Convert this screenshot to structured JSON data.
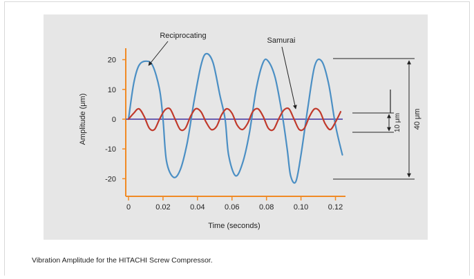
{
  "caption": "Vibration Amplitude for the HITACHI Screw Compressor.",
  "colors": {
    "panel_bg": "#e6e6e6",
    "axis": "#f08a24",
    "reciprocating": "#4b8fc4",
    "samurai": "#c0392b",
    "zero_line": "#6a5fb0",
    "annotation": "#222222"
  },
  "annotations": {
    "reciprocating_label": "Reciprocating",
    "samurai_label": "Samurai",
    "dim_small": "10 μm",
    "dim_large": "40 μm"
  },
  "chart_data": {
    "type": "line",
    "xlabel": "Time (seconds)",
    "ylabel": "Amplitude (μm)",
    "xlim": [
      0,
      0.125
    ],
    "ylim": [
      -25,
      25
    ],
    "x_ticks": [
      "0",
      "0.02",
      "0.04",
      "0.06",
      "0.08",
      "0.10",
      "0.12"
    ],
    "x_tick_values": [
      0,
      0.02,
      0.04,
      0.06,
      0.08,
      0.1,
      0.12
    ],
    "y_ticks": [
      "20",
      "10",
      "0",
      "-10",
      "-20"
    ],
    "y_tick_values": [
      20,
      10,
      0,
      -10,
      -20
    ],
    "grid": false,
    "series": [
      {
        "name": "Reciprocating",
        "x": [
          0,
          0.003,
          0.006,
          0.01,
          0.014,
          0.018,
          0.02,
          0.022,
          0.026,
          0.03,
          0.034,
          0.038,
          0.042,
          0.045,
          0.049,
          0.053,
          0.056,
          0.058,
          0.062,
          0.066,
          0.07,
          0.074,
          0.078,
          0.081,
          0.085,
          0.089,
          0.092,
          0.094,
          0.097,
          0.1,
          0.104,
          0.108,
          0.112,
          0.116,
          0.12,
          0.124
        ],
        "values": [
          0,
          12,
          18,
          19.5,
          18,
          10,
          0,
          -14,
          -19.5,
          -17,
          -8,
          6,
          18,
          22,
          19,
          8,
          0,
          -12,
          -19,
          -15,
          -5,
          10,
          19,
          19.5,
          14,
          2,
          -10,
          -19,
          -21,
          -12,
          4,
          18,
          19.5,
          12,
          -2,
          -12
        ]
      },
      {
        "name": "Samurai",
        "x": [
          0,
          0.003,
          0.006,
          0.009,
          0.012,
          0.015,
          0.018,
          0.021,
          0.024,
          0.027,
          0.03,
          0.033,
          0.036,
          0.039,
          0.042,
          0.045,
          0.048,
          0.051,
          0.054,
          0.057,
          0.06,
          0.063,
          0.066,
          0.069,
          0.072,
          0.075,
          0.078,
          0.081,
          0.084,
          0.087,
          0.09,
          0.093,
          0.096,
          0.099,
          0.102,
          0.105,
          0.108,
          0.111,
          0.114,
          0.117,
          0.12,
          0.123
        ],
        "values": [
          0,
          2,
          3.5,
          1,
          -3,
          -3.5,
          0,
          3,
          3.5,
          0,
          -3.5,
          -3,
          1,
          3.5,
          2.5,
          -1,
          -3.5,
          -2.5,
          1.5,
          3.5,
          2,
          -2,
          -3.5,
          -1.5,
          2.5,
          3.5,
          1,
          -3,
          -3.5,
          0,
          3,
          3.5,
          0,
          -3.5,
          -3,
          1,
          3.5,
          2.5,
          -1.5,
          -3.5,
          -1,
          2.5
        ]
      }
    ]
  }
}
